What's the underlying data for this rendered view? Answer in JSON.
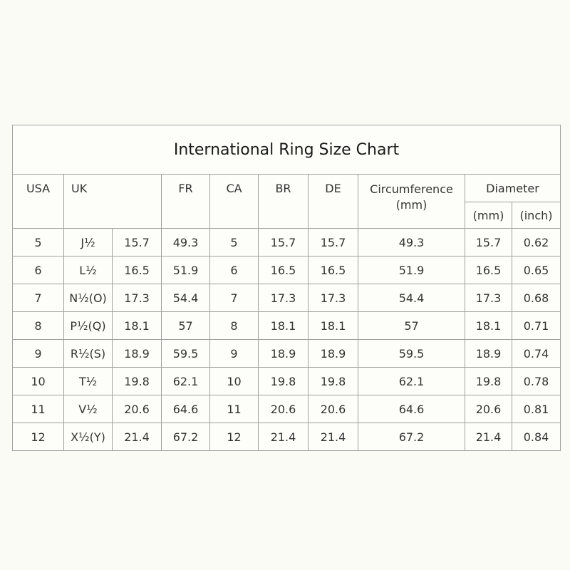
{
  "title": "International Ring Size Chart",
  "headers": {
    "usa": "USA",
    "uk": "UK",
    "fr": "FR",
    "ca": "CA",
    "br": "BR",
    "de": "DE",
    "circ1": "Circumference",
    "circ2": "(mm)",
    "diameter": "Diameter",
    "mm": "(mm)",
    "inch": "(inch)"
  },
  "rows": [
    [
      "5",
      "J½",
      "15.7",
      "49.3",
      "5",
      "15.7",
      "15.7",
      "49.3",
      "15.7",
      "0.62"
    ],
    [
      "6",
      "L½",
      "16.5",
      "51.9",
      "6",
      "16.5",
      "16.5",
      "51.9",
      "16.5",
      "0.65"
    ],
    [
      "7",
      "N½(O)",
      "17.3",
      "54.4",
      "7",
      "17.3",
      "17.3",
      "54.4",
      "17.3",
      "0.68"
    ],
    [
      "8",
      "P½(Q)",
      "18.1",
      "57",
      "8",
      "18.1",
      "18.1",
      "57",
      "18.1",
      "0.71"
    ],
    [
      "9",
      "R½(S)",
      "18.9",
      "59.5",
      "9",
      "18.9",
      "18.9",
      "59.5",
      "18.9",
      "0.74"
    ],
    [
      "10",
      "T½",
      "19.8",
      "62.1",
      "10",
      "19.8",
      "19.8",
      "62.1",
      "19.8",
      "0.78"
    ],
    [
      "11",
      "V½",
      "20.6",
      "64.6",
      "11",
      "20.6",
      "20.6",
      "64.6",
      "20.6",
      "0.81"
    ],
    [
      "12",
      "X½(Y)",
      "21.4",
      "67.2",
      "12",
      "21.4",
      "21.4",
      "67.2",
      "21.4",
      "0.84"
    ]
  ]
}
